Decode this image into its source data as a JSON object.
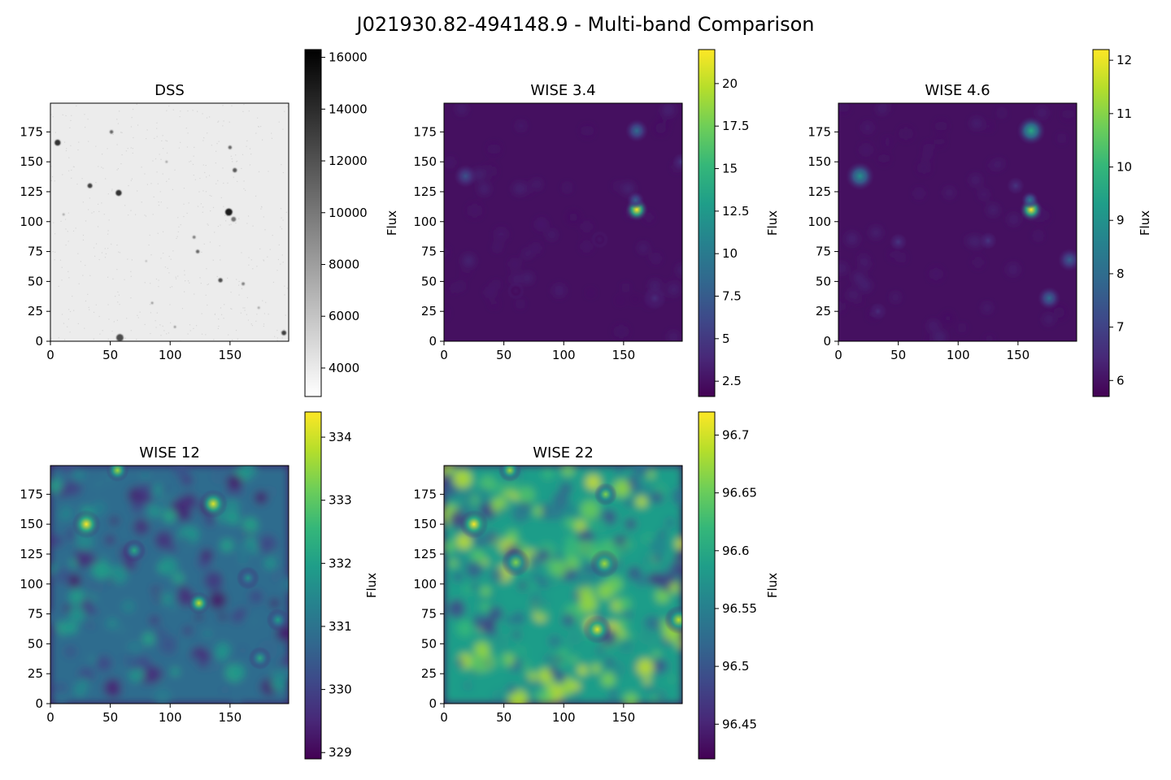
{
  "figure": {
    "title": "J021930.82-494148.9 - Multi-band Comparison"
  },
  "colors": {
    "grays_cmap": [
      "#ffffff",
      "#000000"
    ],
    "viridis_cmap": [
      "#440154",
      "#482878",
      "#3e4989",
      "#31688e",
      "#26828e",
      "#1f9e89",
      "#35b779",
      "#6ece58",
      "#b5de2b",
      "#fde725"
    ],
    "dss_background": "#ececec",
    "wise_background": "#451060"
  },
  "chart_data": [
    {
      "type": "heatmap",
      "title": "DSS",
      "colormap": "gray_r",
      "xlim": [
        0,
        199
      ],
      "ylim": [
        0,
        199
      ],
      "xticks": [
        0,
        50,
        100,
        150
      ],
      "yticks": [
        0,
        25,
        50,
        75,
        100,
        125,
        150,
        175
      ],
      "colorbar": {
        "label": "Flux",
        "range": [
          2900,
          16300
        ],
        "ticks": [
          4000,
          6000,
          8000,
          10000,
          12000,
          14000,
          16000
        ]
      },
      "sources": [
        {
          "x": 6,
          "y": 166,
          "r": 2.5,
          "v": 0.8
        },
        {
          "x": 51,
          "y": 175,
          "r": 1.5,
          "v": 0.6
        },
        {
          "x": 33,
          "y": 130,
          "r": 2,
          "v": 0.75
        },
        {
          "x": 57,
          "y": 124,
          "r": 2.5,
          "v": 0.8
        },
        {
          "x": 150,
          "y": 162,
          "r": 1.5,
          "v": 0.6
        },
        {
          "x": 154,
          "y": 143,
          "r": 1.8,
          "v": 0.65
        },
        {
          "x": 149,
          "y": 108,
          "r": 3,
          "v": 0.9
        },
        {
          "x": 153,
          "y": 102,
          "r": 2,
          "v": 0.55
        },
        {
          "x": 120,
          "y": 87,
          "r": 1.3,
          "v": 0.5
        },
        {
          "x": 123,
          "y": 75,
          "r": 1.5,
          "v": 0.6
        },
        {
          "x": 142,
          "y": 51,
          "r": 1.8,
          "v": 0.7
        },
        {
          "x": 161,
          "y": 48,
          "r": 1.3,
          "v": 0.5
        },
        {
          "x": 58,
          "y": 3,
          "r": 3,
          "v": 0.7
        },
        {
          "x": 195,
          "y": 7,
          "r": 2,
          "v": 0.75
        },
        {
          "x": 104,
          "y": 12,
          "r": 1,
          "v": 0.4
        },
        {
          "x": 85,
          "y": 32,
          "r": 1,
          "v": 0.4
        },
        {
          "x": 174,
          "y": 28,
          "r": 1,
          "v": 0.35
        },
        {
          "x": 97,
          "y": 150,
          "r": 1,
          "v": 0.35
        },
        {
          "x": 11,
          "y": 106,
          "r": 1,
          "v": 0.35
        },
        {
          "x": 80,
          "y": 67,
          "r": 0.8,
          "v": 0.3
        }
      ]
    },
    {
      "type": "heatmap",
      "title": "WISE 3.4",
      "colormap": "viridis",
      "xlim": [
        0,
        199
      ],
      "ylim": [
        0,
        199
      ],
      "xticks": [
        0,
        50,
        100,
        150
      ],
      "yticks": [
        0,
        25,
        50,
        75,
        100,
        125,
        150,
        175
      ],
      "colorbar": {
        "label": "Flux",
        "range": [
          1.6,
          22.0
        ],
        "ticks": [
          2.5,
          5.0,
          7.5,
          10.0,
          12.5,
          15.0,
          17.5,
          20.0
        ]
      },
      "sources": [
        {
          "x": 161,
          "y": 110,
          "r": 4,
          "v": 1.0
        },
        {
          "x": 161,
          "y": 176,
          "r": 4,
          "v": 0.35
        },
        {
          "x": 18,
          "y": 138,
          "r": 4,
          "v": 0.25
        },
        {
          "x": 176,
          "y": 36,
          "r": 4,
          "v": 0.12
        },
        {
          "x": 198,
          "y": 150,
          "r": 3,
          "v": 0.15
        },
        {
          "x": 160,
          "y": 118,
          "r": 3,
          "v": 0.3
        },
        {
          "x": 130,
          "y": 85,
          "r": 3,
          "v": 0.06
        },
        {
          "x": 60,
          "y": 42,
          "r": 3,
          "v": 0.05
        }
      ]
    },
    {
      "type": "heatmap",
      "title": "WISE 4.6",
      "colormap": "viridis",
      "xlim": [
        0,
        199
      ],
      "ylim": [
        0,
        199
      ],
      "xticks": [
        0,
        50,
        100,
        150
      ],
      "yticks": [
        0,
        25,
        50,
        75,
        100,
        125,
        150,
        175
      ],
      "colorbar": {
        "label": "Flux",
        "range": [
          5.7,
          12.2
        ],
        "ticks": [
          6,
          7,
          8,
          9,
          10,
          11,
          12
        ]
      },
      "sources": [
        {
          "x": 161,
          "y": 110,
          "r": 4,
          "v": 1.0
        },
        {
          "x": 161,
          "y": 176,
          "r": 5,
          "v": 0.6
        },
        {
          "x": 18,
          "y": 138,
          "r": 5,
          "v": 0.5
        },
        {
          "x": 176,
          "y": 36,
          "r": 4,
          "v": 0.35
        },
        {
          "x": 193,
          "y": 68,
          "r": 4,
          "v": 0.3
        },
        {
          "x": 160,
          "y": 118,
          "r": 3,
          "v": 0.4
        },
        {
          "x": 125,
          "y": 84,
          "r": 3,
          "v": 0.15
        },
        {
          "x": 50,
          "y": 83,
          "r": 3,
          "v": 0.15
        },
        {
          "x": 148,
          "y": 130,
          "r": 3,
          "v": 0.15
        },
        {
          "x": 33,
          "y": 25,
          "r": 3,
          "v": 0.12
        }
      ]
    },
    {
      "type": "heatmap",
      "title": "WISE 12",
      "colormap": "viridis",
      "xlim": [
        0,
        199
      ],
      "ylim": [
        0,
        199
      ],
      "xticks": [
        0,
        50,
        100,
        150
      ],
      "yticks": [
        0,
        25,
        50,
        75,
        100,
        125,
        150,
        175
      ],
      "colorbar": {
        "label": "Flux",
        "range": [
          328.9,
          334.4
        ],
        "ticks": [
          329,
          330,
          331,
          332,
          333,
          334
        ]
      },
      "sources": [
        {
          "x": 30,
          "y": 150,
          "r": 5,
          "v": 1.0
        },
        {
          "x": 136,
          "y": 167,
          "r": 5,
          "v": 0.95
        },
        {
          "x": 124,
          "y": 84,
          "r": 4,
          "v": 0.9
        },
        {
          "x": 56,
          "y": 195,
          "r": 4,
          "v": 0.85
        },
        {
          "x": 70,
          "y": 128,
          "r": 4,
          "v": 0.6
        },
        {
          "x": 175,
          "y": 38,
          "r": 4,
          "v": 0.6
        },
        {
          "x": 190,
          "y": 70,
          "r": 4,
          "v": 0.55
        },
        {
          "x": 165,
          "y": 105,
          "r": 4,
          "v": 0.5
        }
      ]
    },
    {
      "type": "heatmap",
      "title": "WISE 22",
      "colormap": "viridis",
      "xlim": [
        0,
        199
      ],
      "ylim": [
        0,
        199
      ],
      "xticks": [
        0,
        50,
        100,
        150
      ],
      "yticks": [
        0,
        25,
        50,
        75,
        100,
        125,
        150,
        175
      ],
      "colorbar": {
        "label": "Flux",
        "range": [
          96.42,
          96.72
        ],
        "ticks": [
          96.45,
          96.5,
          96.55,
          96.6,
          96.65,
          96.7
        ]
      },
      "sources": [
        {
          "x": 25,
          "y": 150,
          "r": 5,
          "v": 1.0
        },
        {
          "x": 128,
          "y": 62,
          "r": 5,
          "v": 0.95
        },
        {
          "x": 196,
          "y": 70,
          "r": 5,
          "v": 0.9
        },
        {
          "x": 55,
          "y": 195,
          "r": 4,
          "v": 0.85
        },
        {
          "x": 134,
          "y": 117,
          "r": 5,
          "v": 0.85
        },
        {
          "x": 60,
          "y": 118,
          "r": 5,
          "v": 0.8
        },
        {
          "x": 135,
          "y": 175,
          "r": 4,
          "v": 0.8
        }
      ]
    }
  ]
}
